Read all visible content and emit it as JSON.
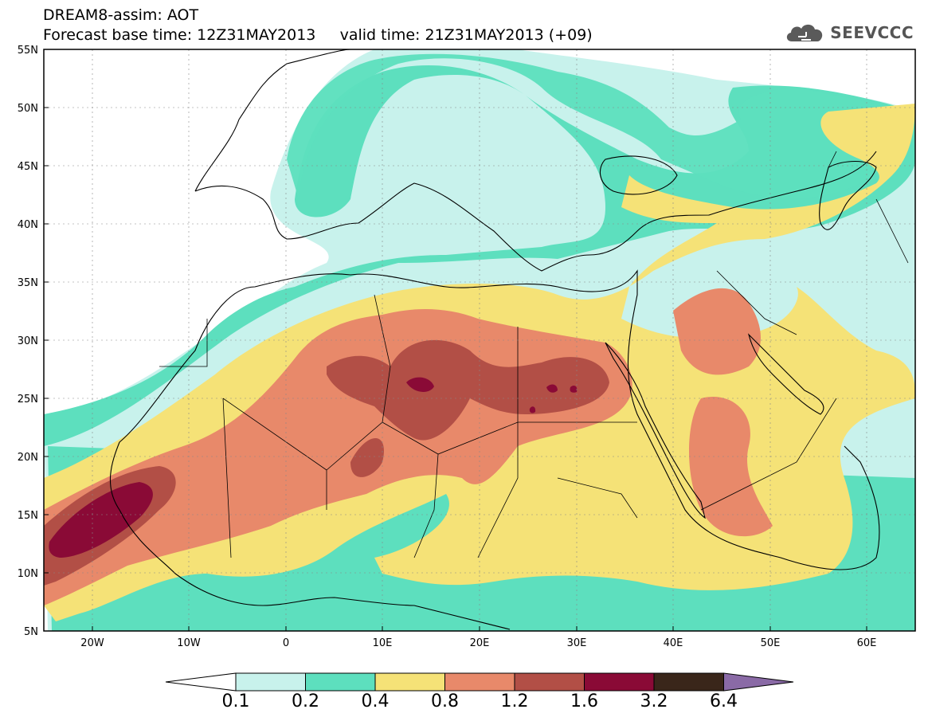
{
  "header": {
    "title_line_1": "DREAM8-assim: AOT",
    "title_line_2": "Forecast base time: 12Z31MAY2013     valid time: 21Z31MAY2013 (+09)"
  },
  "logo": {
    "text": "SEEVCCC",
    "icon": "cloud-icon"
  },
  "map": {
    "projection": "lat-lon",
    "lon_range": [
      -25,
      65
    ],
    "lat_range": [
      5,
      55
    ],
    "lat_ticks": [
      "55N",
      "50N",
      "45N",
      "40N",
      "35N",
      "30N",
      "25N",
      "20N",
      "15N",
      "10N",
      "5N"
    ],
    "lon_ticks": [
      "20W",
      "10W",
      "0",
      "10E",
      "20E",
      "30E",
      "40E",
      "50E",
      "60E"
    ],
    "grid": true
  },
  "colorbar": {
    "labels": [
      "0.1",
      "0.2",
      "0.4",
      "0.8",
      "1.2",
      "1.6",
      "3.2",
      "6.4"
    ],
    "colors": [
      "#ffffff",
      "#c8f2ec",
      "#5ddfbe",
      "#f5e277",
      "#e8896a",
      "#b24f46",
      "#8a0a36",
      "#3a261a",
      "#8a6aa6"
    ],
    "extend": "both"
  }
}
